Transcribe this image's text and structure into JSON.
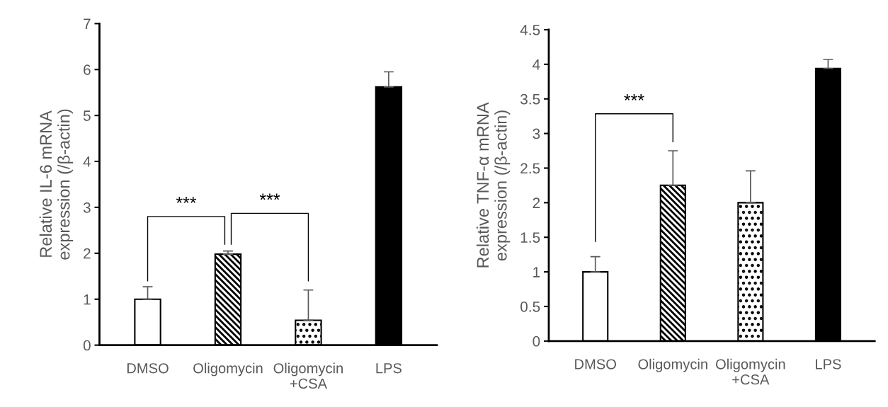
{
  "chart_data": [
    {
      "type": "bar",
      "ylabel": "Relative IL-6 mRNA\nexpression (/β-actin)",
      "categories": [
        "DMSO",
        "Oligomycin",
        "Oligomycin\n+CSA",
        "LPS"
      ],
      "values": [
        1.0,
        1.98,
        0.54,
        5.62
      ],
      "errors": [
        0.27,
        0.07,
        0.66,
        0.33
      ],
      "colors": [
        "#ffffff",
        "#000000",
        "#000000",
        "#000000"
      ],
      "ylim": [
        0,
        7
      ],
      "yticks": [
        0,
        1,
        2,
        3,
        4,
        5,
        6,
        7
      ],
      "grid": false,
      "legend": false,
      "annotations": [
        "***",
        "***"
      ]
    },
    {
      "type": "bar",
      "ylabel": "Relative TNF-α mRNA\nexpression (/β-actin)",
      "categories": [
        "DMSO",
        "Oligomycin",
        "Oligomycin\n+CSA",
        "LPS"
      ],
      "values": [
        1.0,
        2.25,
        2.0,
        3.94
      ],
      "errors": [
        0.22,
        0.5,
        0.46,
        0.13
      ],
      "colors": [
        "#ffffff",
        "#000000",
        "#000000",
        "#000000"
      ],
      "ylim": [
        0,
        4.5
      ],
      "yticks": [
        0,
        0.5,
        1,
        1.5,
        2,
        2.5,
        3,
        3.5,
        4,
        4.5
      ],
      "grid": false,
      "legend": false,
      "annotations": [
        "***"
      ]
    }
  ]
}
